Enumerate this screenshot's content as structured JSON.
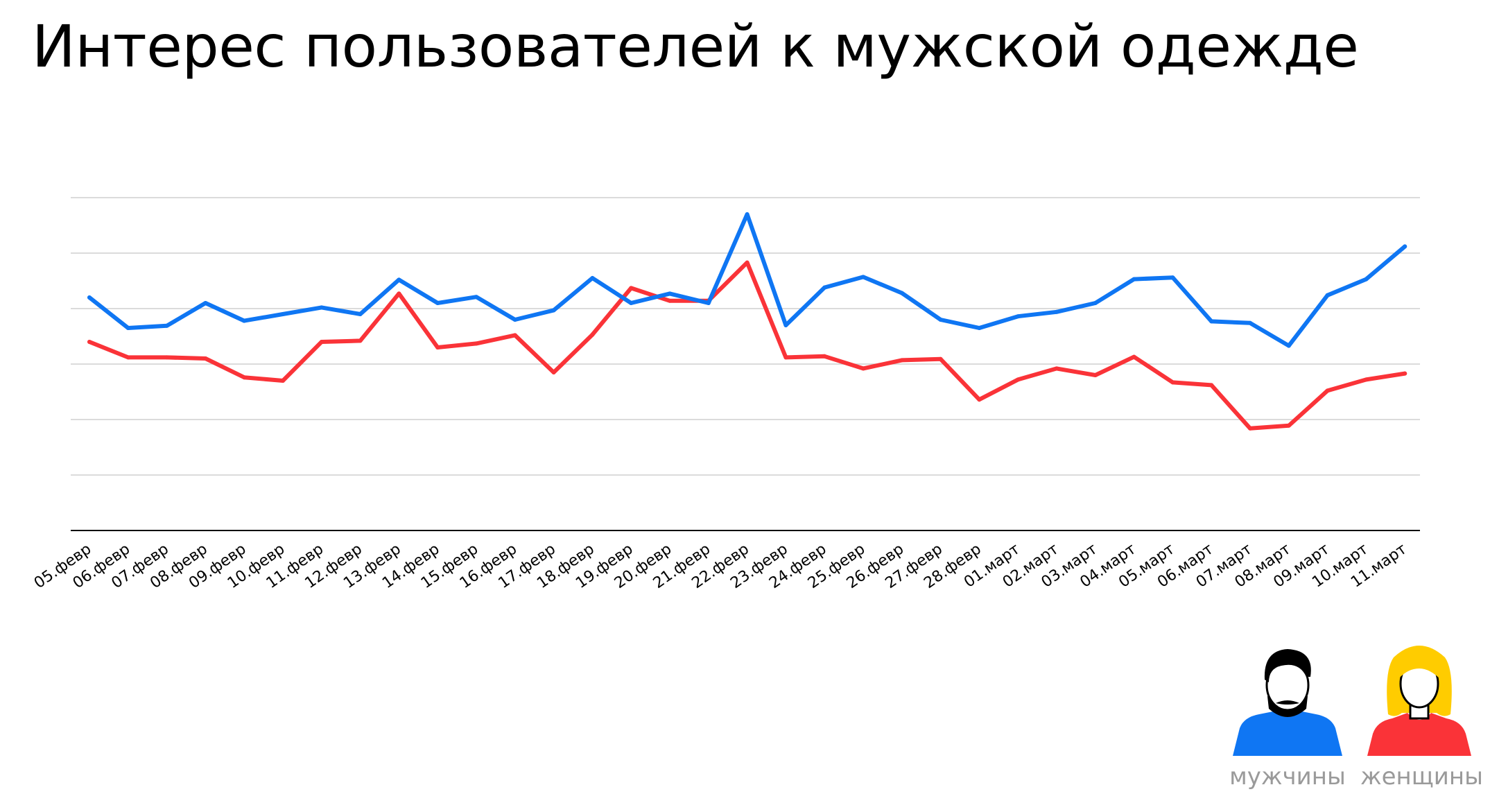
{
  "title": "Интерес пользователей к мужской одежде",
  "legend": {
    "men_label": "мужчины",
    "women_label": "женщины"
  },
  "chart_data": {
    "type": "line",
    "title": "Интерес пользователей к мужской одежде",
    "xlabel": "",
    "ylabel": "",
    "ylim": [
      0,
      6
    ],
    "grid": true,
    "legend_position": "bottom-right",
    "categories": [
      "05.февр",
      "06.февр",
      "07.февр",
      "08.февр",
      "09.февр",
      "10.февр",
      "11.февр",
      "12.февр",
      "13.февр",
      "14.февр",
      "15.февр",
      "16.февр",
      "17.февр",
      "18.февр",
      "19.февр",
      "20.февр",
      "21.февр",
      "22.февр",
      "23.февр",
      "24.февр",
      "25.февр",
      "26.февр",
      "27.февр",
      "28.февр",
      "01.март",
      "02.март",
      "03.март",
      "04.март",
      "05.март",
      "06.март",
      "07.март",
      "08.март",
      "09.март",
      "10.март",
      "11.март"
    ],
    "series": [
      {
        "name": "мужчины",
        "color": "#0f76f3",
        "values": [
          4.2,
          3.65,
          3.69,
          4.1,
          3.78,
          3.9,
          4.02,
          3.9,
          4.52,
          4.1,
          4.21,
          3.8,
          3.97,
          4.55,
          4.1,
          4.27,
          4.1,
          5.7,
          3.7,
          4.38,
          4.57,
          4.28,
          3.8,
          3.65,
          3.86,
          3.94,
          4.1,
          4.53,
          4.56,
          3.77,
          3.74,
          3.33,
          4.24,
          4.53,
          5.12
        ]
      },
      {
        "name": "женщины",
        "color": "#fa3338",
        "values": [
          3.4,
          3.12,
          3.12,
          3.1,
          2.76,
          2.7,
          3.4,
          3.42,
          4.27,
          3.3,
          3.37,
          3.52,
          2.85,
          3.53,
          4.37,
          4.14,
          4.14,
          4.83,
          3.12,
          3.14,
          2.92,
          3.07,
          3.09,
          2.36,
          2.72,
          2.92,
          2.8,
          3.13,
          2.67,
          2.62,
          1.84,
          1.89,
          2.52,
          2.72,
          2.83
        ]
      }
    ]
  }
}
